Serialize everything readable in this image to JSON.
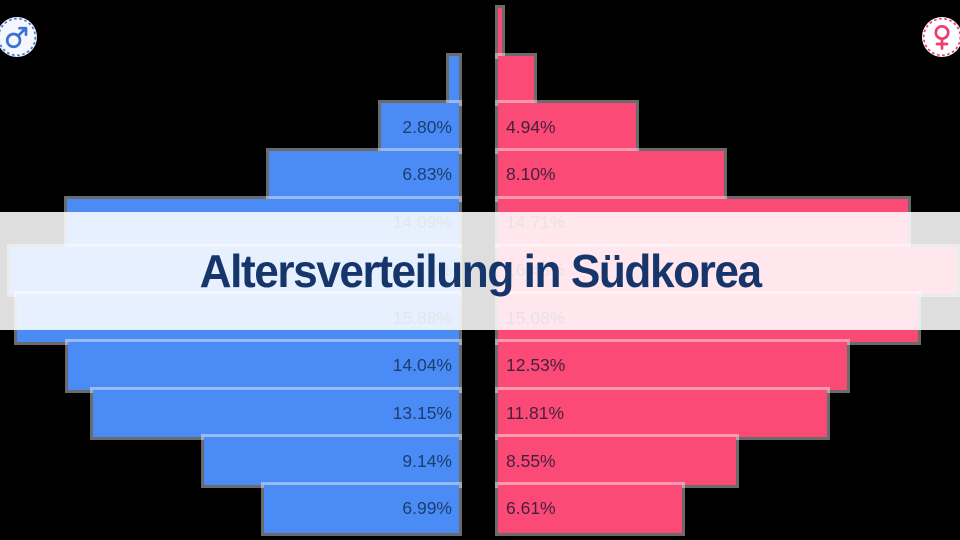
{
  "page": {
    "background": "#000000"
  },
  "title": {
    "text": "Altersverteilung in Südkorea",
    "color": "#16366b",
    "band_color": "rgba(255,255,255,0.87)"
  },
  "icons": {
    "male_badge": {
      "symbol": "♂",
      "color": "#3e6fd6",
      "ring": "dashed",
      "disc": "#f4f7fd"
    },
    "female_badge": {
      "symbol": "♀",
      "color": "#ef3d72",
      "ring": "dashed",
      "disc": "#ffffff"
    }
  },
  "chart_data": {
    "type": "bar",
    "subtype": "population-pyramid-mirrored",
    "title": "Altersverteilung in Südkorea",
    "unit": "%",
    "rows_top_to_bottom": 11,
    "axis_labels_visible": false,
    "grid": false,
    "legend": {
      "left_icon": "male ♂",
      "right_icon": "female ♀"
    },
    "series": [
      {
        "name": "male",
        "side": "left",
        "color": "#4b8bf5",
        "values": [
          0.01,
          0.36,
          2.8,
          6.83,
          14.09,
          16.13,
          15.88,
          14.04,
          13.15,
          9.14,
          6.99
        ],
        "labels": [
          "",
          "",
          "2.80%",
          "6.83%",
          "14.09%",
          "16.13%",
          "15.88%",
          "14.04%",
          "13.15%",
          "9.14%",
          "6.99%"
        ]
      },
      {
        "name": "female",
        "side": "right",
        "color": "#fb4a76",
        "values": [
          0.16,
          1.3,
          4.94,
          8.1,
          14.71,
          16.48,
          15.08,
          12.53,
          11.81,
          8.55,
          6.61
        ],
        "labels": [
          "",
          "",
          "4.94%",
          "8.10%",
          "14.71%",
          "16.48%",
          "15.08%",
          "12.53%",
          "11.81%",
          "8.55%",
          "6.61%"
        ]
      }
    ],
    "clearly_visible_labels": {
      "male": [
        "2.80%",
        "6.83%",
        "14.04%",
        "13.15%",
        "9.14%",
        "6.99%"
      ],
      "female": [
        "4.94%",
        "8.10%",
        "12.53%",
        "11.81%",
        "8.55%",
        "6.61%"
      ]
    },
    "note": "Rows 1-2 have no visible labels; rows 5-7 lie behind the translucent title band (rows 5 and 7 labels faintly visible, e.g. ~15.88%/15.08%); values for rows 1, 2, 5 and 6 are estimated from bar widths at ~27.85 px per percent."
  }
}
